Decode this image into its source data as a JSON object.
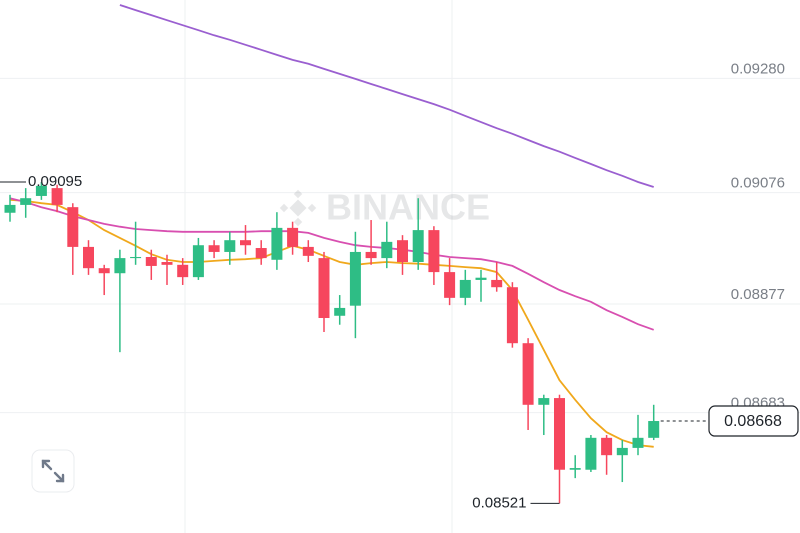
{
  "chart_data": {
    "type": "candlestick",
    "watermark": "BINANCE",
    "up_color": "#2ebd85",
    "down_color": "#f6465d",
    "ylim": [
      0.08468,
      0.0942
    ],
    "yticks": [
      {
        "value": 0.0928,
        "label": "0.09280"
      },
      0.09076,
      0.08877,
      0.08683
    ],
    "grid": true,
    "candles": {
      "open": [
        0.0904,
        0.09054,
        0.0907,
        0.09084,
        0.0905,
        0.08979,
        0.08941,
        0.08932,
        0.08959,
        0.08961,
        0.08952,
        0.08947,
        0.08925,
        0.08982,
        0.0897,
        0.08991,
        0.08977,
        0.08956,
        0.09013,
        0.08979,
        0.08959,
        0.08856,
        0.08874,
        0.0897,
        0.08959,
        0.08991,
        0.08952,
        0.09009,
        0.08934,
        0.08888,
        0.0892,
        0.0892,
        0.08907,
        0.08807,
        0.08697,
        0.08709,
        0.08581,
        0.08581,
        0.08638,
        0.08607,
        0.0862,
        0.08638
      ],
      "high": [
        0.09072,
        0.09084,
        0.09095,
        0.0909,
        0.09057,
        0.08991,
        0.08947,
        0.08974,
        0.09024,
        0.08974,
        0.08965,
        0.08959,
        0.08995,
        0.08991,
        0.09006,
        0.09018,
        0.08991,
        0.09041,
        0.09024,
        0.08991,
        0.0897,
        0.08893,
        0.09006,
        0.09027,
        0.09024,
        0.09,
        0.09066,
        0.09016,
        0.08959,
        0.08938,
        0.08938,
        0.08952,
        0.08916,
        0.08816,
        0.08715,
        0.08715,
        0.08607,
        0.08643,
        0.08643,
        0.08634,
        0.08679,
        0.08697
      ],
      "low": [
        0.09024,
        0.09031,
        0.09063,
        0.09041,
        0.08929,
        0.08929,
        0.08893,
        0.08791,
        0.08947,
        0.0892,
        0.08911,
        0.08911,
        0.0892,
        0.08959,
        0.08947,
        0.08965,
        0.08947,
        0.08938,
        0.08965,
        0.08952,
        0.08827,
        0.0884,
        0.08816,
        0.08947,
        0.08941,
        0.08929,
        0.08938,
        0.08911,
        0.08875,
        0.08875,
        0.08881,
        0.08899,
        0.08799,
        0.08652,
        0.08643,
        0.08521,
        0.08566,
        0.08577,
        0.08572,
        0.08559,
        0.08607,
        0.08634
      ],
      "close": [
        0.09054,
        0.09066,
        0.09088,
        0.09054,
        0.08979,
        0.08941,
        0.08932,
        0.08959,
        0.08961,
        0.08945,
        0.08947,
        0.08925,
        0.08982,
        0.0897,
        0.08991,
        0.08982,
        0.08959,
        0.09013,
        0.08979,
        0.08963,
        0.08852,
        0.0887,
        0.0897,
        0.08959,
        0.08988,
        0.08952,
        0.09009,
        0.08934,
        0.08888,
        0.0892,
        0.08924,
        0.08907,
        0.08807,
        0.08697,
        0.08709,
        0.08581,
        0.08584,
        0.08638,
        0.08607,
        0.0862,
        0.08638,
        0.08668
      ]
    },
    "series": [
      {
        "color": "#f0a81c",
        "values": [
          0.09063,
          0.09061,
          0.09057,
          0.09054,
          0.09041,
          0.09027,
          0.09009,
          0.08995,
          0.08981,
          0.08966,
          0.08956,
          0.08952,
          0.08952,
          0.08954,
          0.08956,
          0.08957,
          0.08959,
          0.0897,
          0.08981,
          0.08974,
          0.08963,
          0.08952,
          0.08947,
          0.0895,
          0.08952,
          0.0895,
          0.08949,
          0.08947,
          0.08945,
          0.08943,
          0.08941,
          0.08934,
          0.08902,
          0.08849,
          0.08795,
          0.08741,
          0.08706,
          0.08673,
          0.08648,
          0.08634,
          0.08625,
          0.08622
        ]
      },
      {
        "color": "#d84fb0",
        "values": [
          0.09066,
          0.09059,
          0.0905,
          0.09043,
          0.09034,
          0.09027,
          0.0902,
          0.09015,
          0.09011,
          0.09009,
          0.09007,
          0.09006,
          0.09006,
          0.09006,
          0.09006,
          0.09006,
          0.09007,
          0.09007,
          0.09007,
          0.09004,
          0.08995,
          0.08988,
          0.08982,
          0.08979,
          0.08977,
          0.08974,
          0.0897,
          0.08965,
          0.08961,
          0.08959,
          0.08957,
          0.08952,
          0.08945,
          0.08931,
          0.08916,
          0.08902,
          0.08891,
          0.08881,
          0.08866,
          0.08854,
          0.08841,
          0.08831
        ]
      },
      {
        "color": "#9a5fd0",
        "values": [
          null,
          null,
          null,
          null,
          null,
          null,
          null,
          0.09411,
          0.09402,
          0.09393,
          0.09384,
          0.09375,
          0.09366,
          0.09357,
          0.09349,
          0.0934,
          0.09331,
          0.09322,
          0.09313,
          0.09306,
          0.09297,
          0.09288,
          0.09279,
          0.0927,
          0.09261,
          0.09252,
          0.09243,
          0.09234,
          0.09224,
          0.09213,
          0.09202,
          0.09191,
          0.09181,
          0.0917,
          0.09159,
          0.09149,
          0.09138,
          0.09127,
          0.09116,
          0.09106,
          0.09095,
          0.09086
        ]
      }
    ]
  }
}
